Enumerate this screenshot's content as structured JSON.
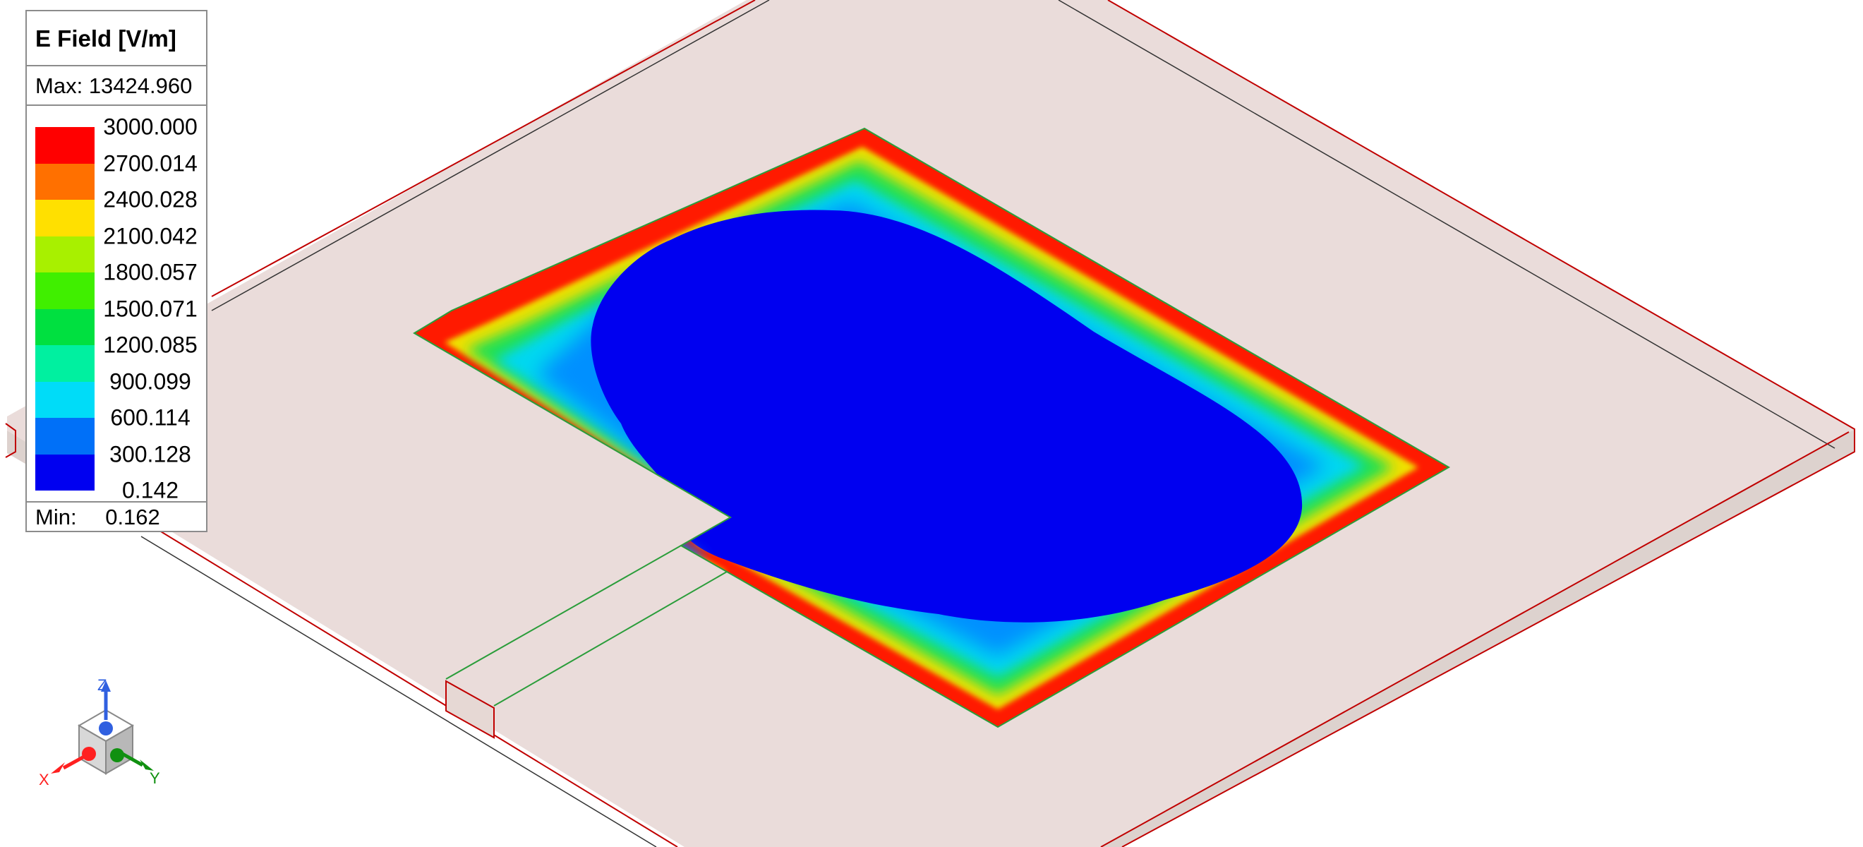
{
  "legend": {
    "title": "E Field [V/m]",
    "max_label": "Max:",
    "max_value": "13424.960",
    "min_label": "Min:",
    "min_value": "0.162",
    "ticks": [
      "3000.000",
      "2700.014",
      "2400.028",
      "2100.042",
      "1800.057",
      "1500.071",
      "1200.085",
      "900.099",
      "600.114",
      "300.128",
      "0.142"
    ],
    "colors": [
      "#ff0000",
      "#ff7000",
      "#ffe000",
      "#a8f000",
      "#40ef00",
      "#00e040",
      "#00f0a0",
      "#00dcf8",
      "#0070f8",
      "#0000f0"
    ]
  },
  "triad": {
    "x_label": "X",
    "y_label": "Y",
    "z_label": "Z",
    "x_color": "#ff2020",
    "y_color": "#109010",
    "z_color": "#3060e0"
  },
  "scene": {
    "substrate_fill": "#eadcda",
    "substrate_side": "#ddd2ce",
    "edge_color": "#c00000",
    "patch_low": "#0000f0",
    "patch_mid": "#00b4ff",
    "patch_edge": "#ff0000"
  }
}
